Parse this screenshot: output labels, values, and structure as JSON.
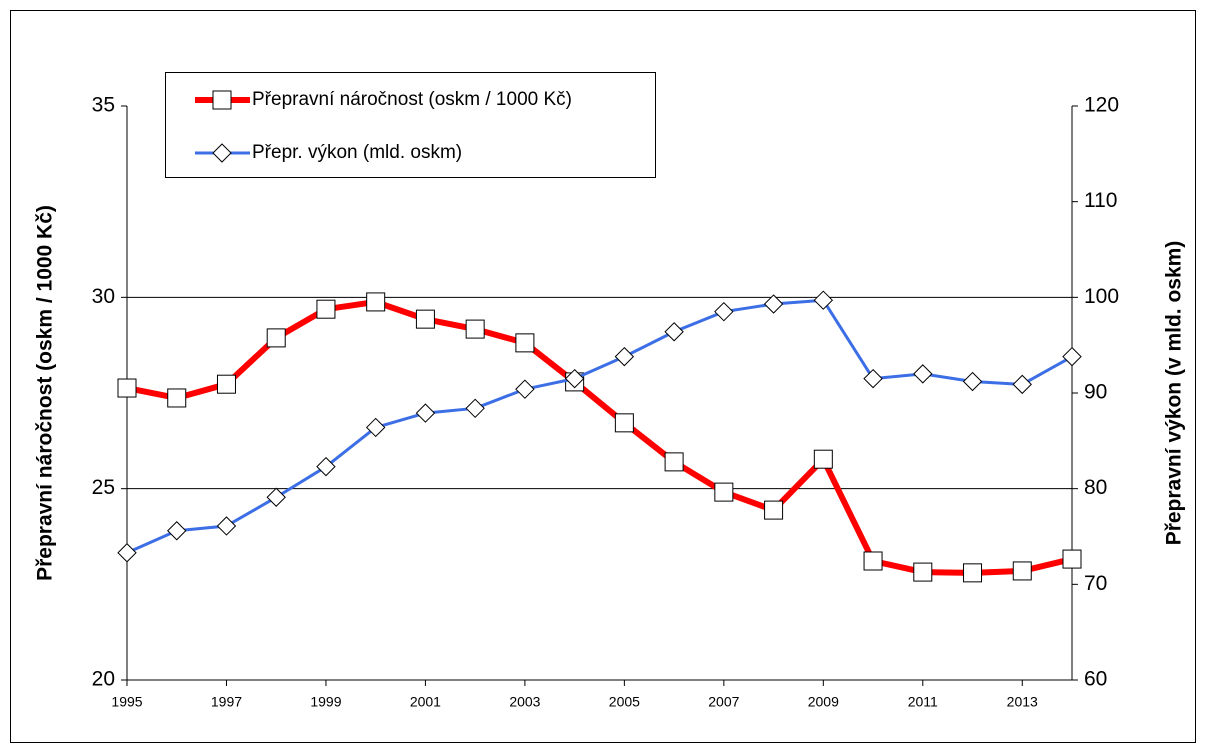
{
  "chart_data": {
    "type": "line",
    "ylabel": "Přepravní náročnost (oskm / 1000 Kč)",
    "y2label": "Přepravní výkon (v mld. oskm)",
    "x": [
      1995,
      1996,
      1997,
      1998,
      1999,
      2000,
      2001,
      2002,
      2003,
      2004,
      2005,
      2006,
      2007,
      2008,
      2009,
      2010,
      2011,
      2012,
      2013,
      2014
    ],
    "xlim": [
      1995,
      2014
    ],
    "xticks": [
      1995,
      1997,
      1999,
      2001,
      2003,
      2005,
      2007,
      2009,
      2011,
      2013
    ],
    "ylim": [
      20,
      35
    ],
    "yticks": [
      20,
      25,
      30,
      35
    ],
    "y2lim": [
      60,
      120
    ],
    "y2ticks": [
      60,
      70,
      80,
      90,
      100,
      110,
      120
    ],
    "grid": true,
    "legend": "top-left",
    "series": [
      {
        "name": "Přepravní náročnost (oskm / 1000 Kč)",
        "color": "#ff0000",
        "marker": "square",
        "values": [
          27.63,
          27.37,
          27.73,
          28.94,
          29.69,
          29.88,
          29.43,
          29.17,
          28.81,
          27.79,
          26.72,
          25.7,
          24.91,
          24.44,
          25.77,
          23.11,
          22.82,
          22.8,
          22.85,
          23.16
        ]
      },
      {
        "name": "Přepr. výkon (mld. oskm)",
        "color": "#3c6ee6",
        "marker": "diamond",
        "axis": "y2",
        "values": [
          73.3,
          75.6,
          76.1,
          79.1,
          82.3,
          86.4,
          87.9,
          88.4,
          90.4,
          91.5,
          93.8,
          96.4,
          98.5,
          99.3,
          99.7,
          91.5,
          92.0,
          91.2,
          90.9,
          93.8
        ]
      }
    ]
  }
}
